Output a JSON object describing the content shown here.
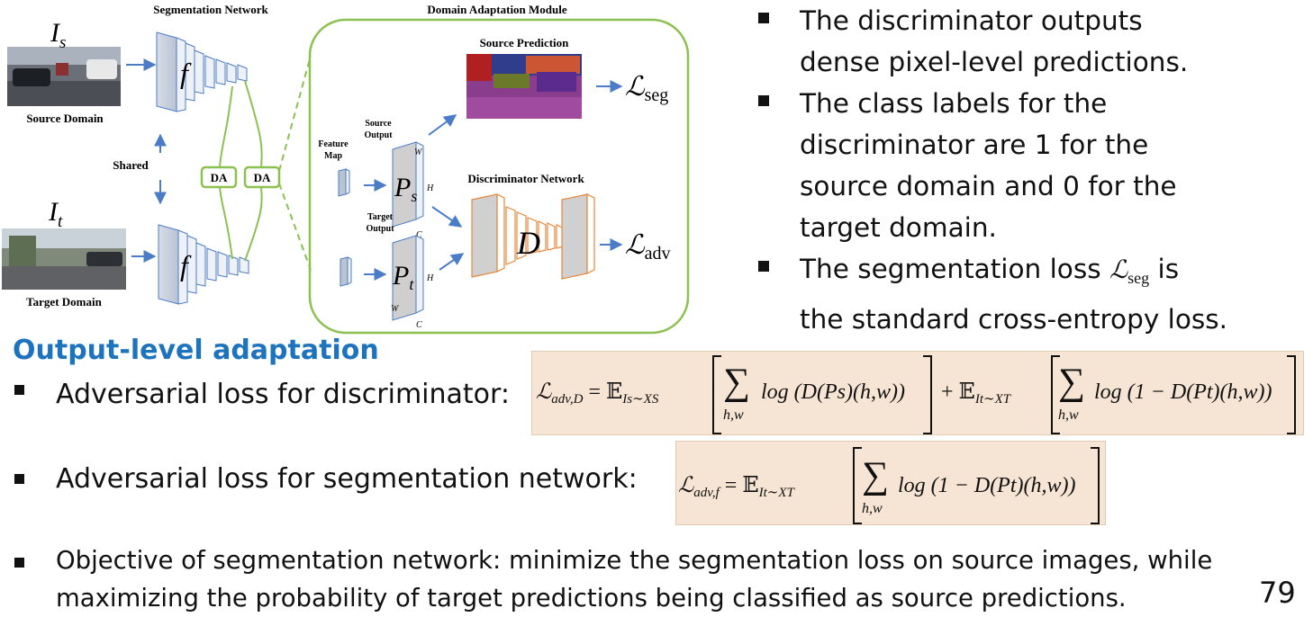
{
  "diagram": {
    "title_segmentation": "Segmentation Network",
    "title_domain_adaptation": "Domain Adaptation Module",
    "source_symbol": "I",
    "source_symbol_sub": "s",
    "target_symbol": "I",
    "target_symbol_sub": "t",
    "source_label": "Source Domain",
    "target_label": "Target Domain",
    "shared_label": "Shared",
    "net_f": "f",
    "da_label_1": "DA",
    "da_label_2": "DA",
    "feature_map_label_1": "Feature",
    "feature_map_label_2": "Map",
    "source_output_1": "Source",
    "source_output_2": "Output",
    "target_output_1": "Target",
    "target_output_2": "Output",
    "ps_symbol": "P",
    "ps_sub": "s",
    "pt_symbol": "P",
    "pt_sub": "t",
    "dim_w": "W",
    "dim_h": "H",
    "dim_c": "C",
    "source_prediction": "Source Prediction",
    "discriminator_network": "Discriminator Network",
    "d_symbol": "D",
    "loss_seg": "ℒ",
    "loss_seg_sub": "seg",
    "loss_adv": "ℒ",
    "loss_adv_sub": "adv",
    "colors": {
      "arrow": "#4a7cc7",
      "green": "#8cc152",
      "orange": "#e6883a"
    }
  },
  "right_bullets": [
    {
      "line1": "The discriminator outputs",
      "line2": "dense pixel-level predictions."
    },
    {
      "line1": "The class labels for the",
      "line2": "discriminator are 1 for the",
      "line3": "source domain and 0 for the",
      "line4": "target domain."
    },
    {
      "line1_a": "The segmentation loss",
      "sym": "ℒ",
      "sym_sub": "seg",
      "line1_b": "is",
      "line2": "the standard cross-entropy loss."
    }
  ],
  "section_title": "Output-level adaptation",
  "bullets": {
    "b1": "Adversarial loss for discriminator:",
    "b2": "Adversarial loss for segmentation network:",
    "b3_line1": "Objective of segmentation network: minimize the segmentation loss on source images, while",
    "b3_line2": "maximizing the probability of target predictions being classified as source predictions."
  },
  "eq1": {
    "lhs": "ℒ",
    "lhs_sub": "adv,D",
    "eq": "=",
    "e1": "𝔼",
    "e1_sub": "Is∼XS",
    "sum": "∑",
    "sum_sub": "h,w",
    "t1": "log (D(Ps)(h,w))",
    "plus": "+",
    "e2": "𝔼",
    "e2_sub": "It∼XT",
    "t2": "log (1 − D(Pt)(h,w))"
  },
  "eq2": {
    "lhs": "ℒ",
    "lhs_sub": "adv,f",
    "eq": "=",
    "e1": "𝔼",
    "e1_sub": "It∼XT",
    "sum": "∑",
    "sum_sub": "h,w",
    "t1": "log (1 − D(Pt)(h,w))"
  },
  "page_number": "79"
}
